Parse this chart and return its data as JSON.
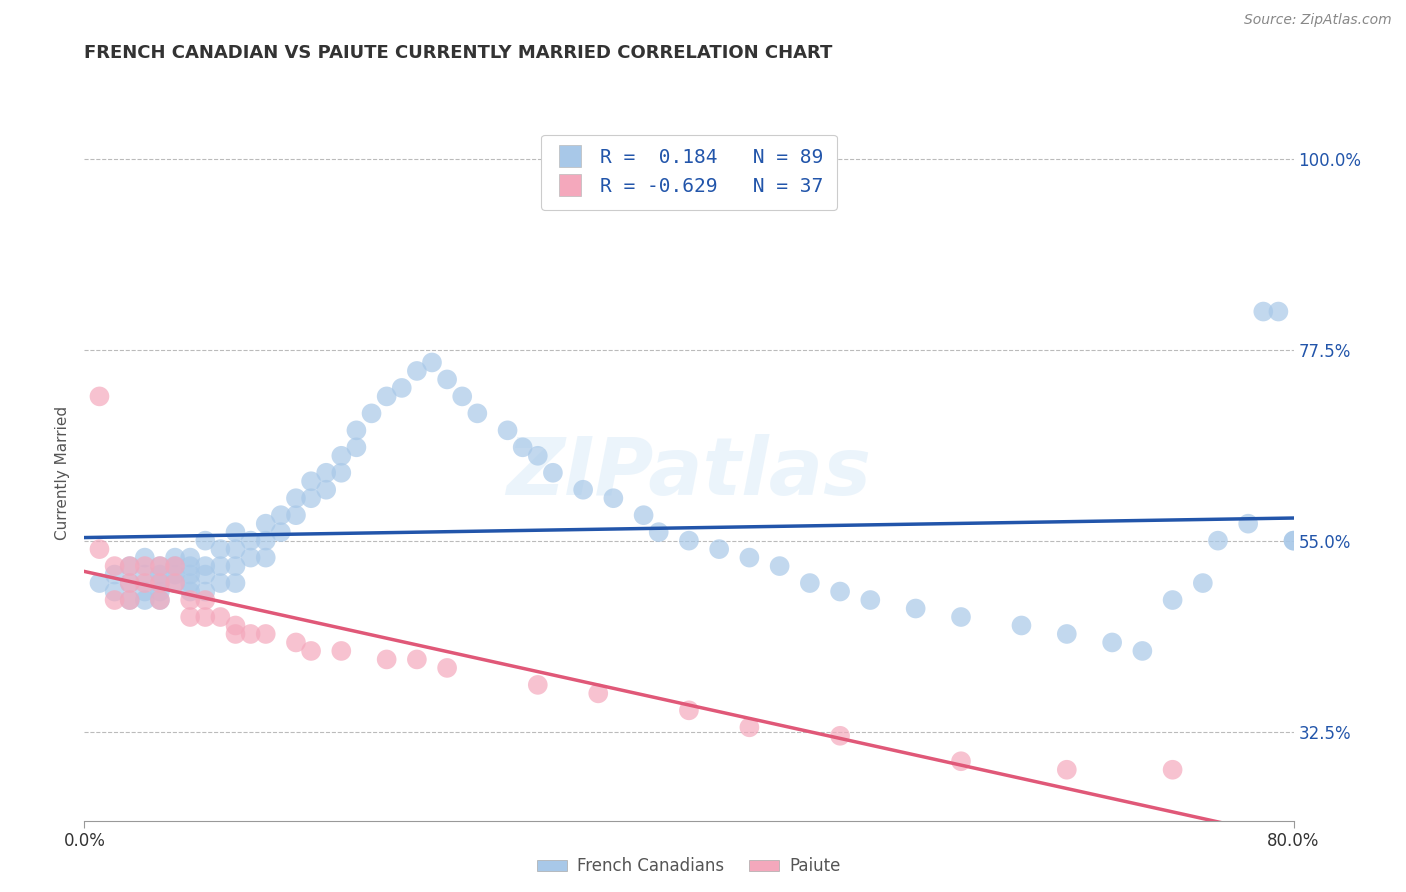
{
  "title": "FRENCH CANADIAN VS PAIUTE CURRENTLY MARRIED CORRELATION CHART",
  "source_text": "Source: ZipAtlas.com",
  "ylabel": "Currently Married",
  "x_min": 0.0,
  "x_max": 0.8,
  "y_min": 0.22,
  "y_max": 1.04,
  "x_ticks": [
    0.0,
    0.8
  ],
  "x_tick_labels": [
    "0.0%",
    "80.0%"
  ],
  "y_ticks": [
    0.325,
    0.55,
    0.775,
    1.0
  ],
  "y_tick_labels": [
    "32.5%",
    "55.0%",
    "77.5%",
    "100.0%"
  ],
  "legend_labels": [
    "French Canadians",
    "Paiute"
  ],
  "R_blue": 0.184,
  "N_blue": 89,
  "R_pink": -0.629,
  "N_pink": 37,
  "blue_color": "#A8C8E8",
  "pink_color": "#F4A8BC",
  "blue_line_color": "#2255AA",
  "pink_line_color": "#E05878",
  "watermark": "ZIPatlas",
  "grid_color": "#BBBBBB",
  "title_color": "#333333",
  "ytick_color": "#2255AA",
  "blue_scatter_x": [
    0.01,
    0.02,
    0.02,
    0.03,
    0.03,
    0.03,
    0.04,
    0.04,
    0.04,
    0.04,
    0.05,
    0.05,
    0.05,
    0.05,
    0.05,
    0.06,
    0.06,
    0.06,
    0.06,
    0.07,
    0.07,
    0.07,
    0.07,
    0.07,
    0.08,
    0.08,
    0.08,
    0.08,
    0.09,
    0.09,
    0.09,
    0.1,
    0.1,
    0.1,
    0.1,
    0.11,
    0.11,
    0.12,
    0.12,
    0.12,
    0.13,
    0.13,
    0.14,
    0.14,
    0.15,
    0.15,
    0.16,
    0.16,
    0.17,
    0.17,
    0.18,
    0.18,
    0.19,
    0.2,
    0.21,
    0.22,
    0.23,
    0.24,
    0.25,
    0.26,
    0.28,
    0.29,
    0.3,
    0.31,
    0.33,
    0.35,
    0.37,
    0.38,
    0.4,
    0.42,
    0.44,
    0.46,
    0.48,
    0.5,
    0.52,
    0.55,
    0.58,
    0.62,
    0.65,
    0.68,
    0.7,
    0.72,
    0.74,
    0.75,
    0.77,
    0.78,
    0.79,
    0.8,
    0.8
  ],
  "blue_scatter_y": [
    0.5,
    0.51,
    0.49,
    0.52,
    0.5,
    0.48,
    0.53,
    0.51,
    0.49,
    0.48,
    0.52,
    0.5,
    0.49,
    0.51,
    0.48,
    0.53,
    0.51,
    0.5,
    0.52,
    0.5,
    0.52,
    0.53,
    0.51,
    0.49,
    0.55,
    0.52,
    0.51,
    0.49,
    0.54,
    0.52,
    0.5,
    0.56,
    0.54,
    0.52,
    0.5,
    0.55,
    0.53,
    0.57,
    0.55,
    0.53,
    0.58,
    0.56,
    0.6,
    0.58,
    0.62,
    0.6,
    0.63,
    0.61,
    0.65,
    0.63,
    0.68,
    0.66,
    0.7,
    0.72,
    0.73,
    0.75,
    0.76,
    0.74,
    0.72,
    0.7,
    0.68,
    0.66,
    0.65,
    0.63,
    0.61,
    0.6,
    0.58,
    0.56,
    0.55,
    0.54,
    0.53,
    0.52,
    0.5,
    0.49,
    0.48,
    0.47,
    0.46,
    0.45,
    0.44,
    0.43,
    0.42,
    0.48,
    0.5,
    0.55,
    0.57,
    0.82,
    0.82,
    0.55,
    0.55
  ],
  "pink_scatter_x": [
    0.01,
    0.01,
    0.02,
    0.02,
    0.03,
    0.03,
    0.03,
    0.04,
    0.04,
    0.05,
    0.05,
    0.05,
    0.06,
    0.06,
    0.07,
    0.07,
    0.08,
    0.08,
    0.09,
    0.1,
    0.1,
    0.11,
    0.12,
    0.14,
    0.15,
    0.17,
    0.2,
    0.22,
    0.24,
    0.3,
    0.34,
    0.4,
    0.44,
    0.5,
    0.58,
    0.65,
    0.72
  ],
  "pink_scatter_y": [
    0.72,
    0.54,
    0.52,
    0.48,
    0.52,
    0.5,
    0.48,
    0.52,
    0.5,
    0.52,
    0.5,
    0.48,
    0.52,
    0.5,
    0.48,
    0.46,
    0.48,
    0.46,
    0.46,
    0.45,
    0.44,
    0.44,
    0.44,
    0.43,
    0.42,
    0.42,
    0.41,
    0.41,
    0.4,
    0.38,
    0.37,
    0.35,
    0.33,
    0.32,
    0.29,
    0.28,
    0.28
  ]
}
